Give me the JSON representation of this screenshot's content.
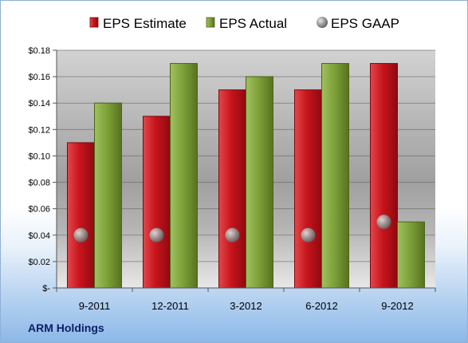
{
  "chart_data": {
    "type": "bar",
    "categories": [
      "9-2011",
      "12-2011",
      "3-2012",
      "6-2012",
      "9-2012"
    ],
    "series": [
      {
        "name": "EPS Estimate",
        "values": [
          0.11,
          0.13,
          0.15,
          0.15,
          0.17
        ],
        "color": "#c8141c",
        "mark": "bar"
      },
      {
        "name": "EPS Actual",
        "values": [
          0.14,
          0.17,
          0.16,
          0.17,
          0.05
        ],
        "color": "#7fa23a",
        "mark": "bar"
      },
      {
        "name": "EPS GAAP",
        "values": [
          0.04,
          0.04,
          0.04,
          0.04,
          0.05
        ],
        "color": "#9a9a9a",
        "mark": "sphere"
      }
    ],
    "ylim": [
      0,
      0.18
    ],
    "yticks": [
      0,
      0.02,
      0.04,
      0.06,
      0.08,
      0.1,
      0.12,
      0.14,
      0.16,
      0.18
    ],
    "ytick_labels": [
      "$-",
      "$0.02",
      "$0.04",
      "$0.06",
      "$0.08",
      "$0.10",
      "$0.12",
      "$0.14",
      "$0.16",
      "$0.18"
    ],
    "grid": true,
    "legend_position": "top"
  },
  "footer": {
    "company": "ARM Holdings"
  }
}
